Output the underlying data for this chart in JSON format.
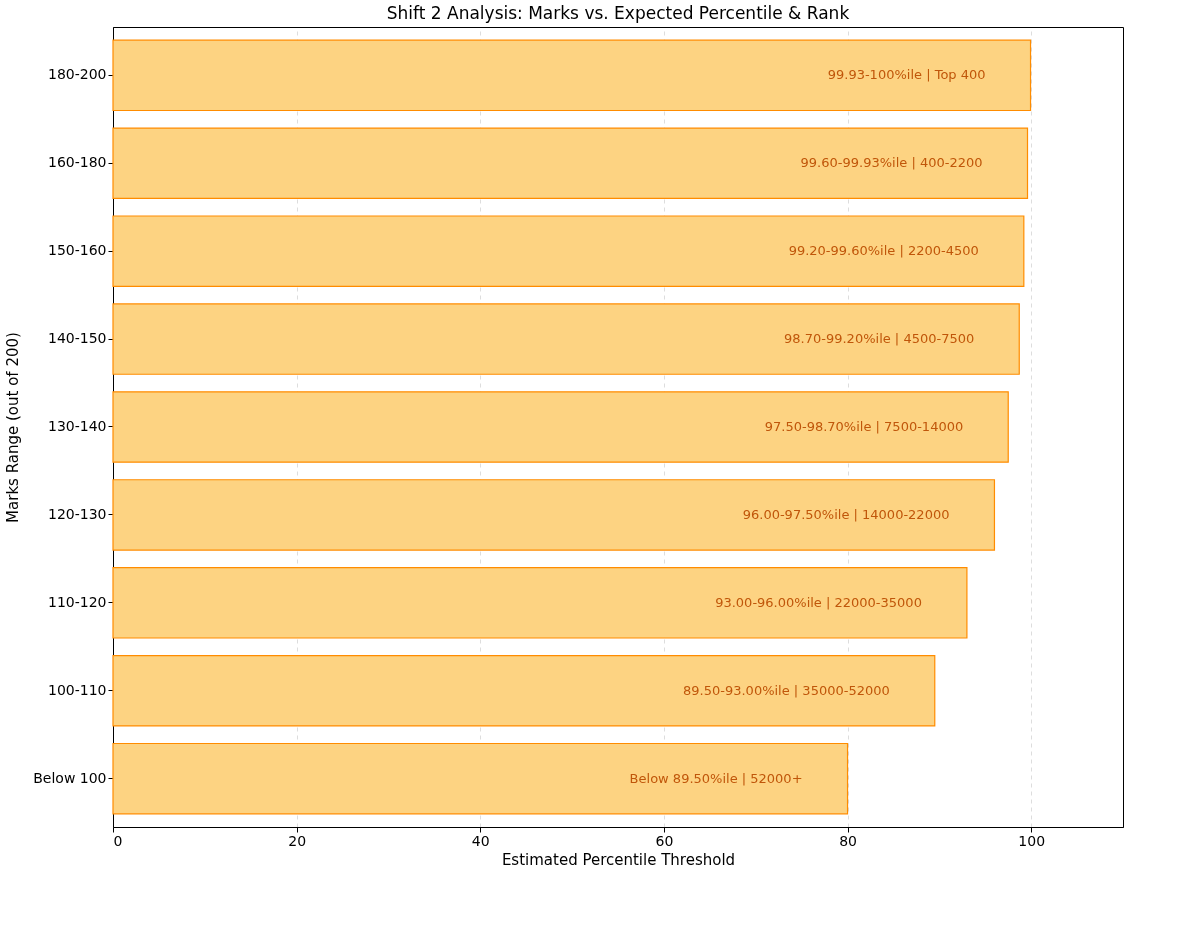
{
  "chart_data": {
    "type": "bar",
    "orientation": "horizontal",
    "title": "Shift 2 Analysis: Marks vs. Expected Percentile & Rank",
    "xlabel": "Estimated Percentile Threshold",
    "ylabel": "Marks Range (out of 200)",
    "categories": [
      "180-200",
      "160-180",
      "150-160",
      "140-150",
      "130-140",
      "120-130",
      "110-120",
      "100-110",
      "Below 100"
    ],
    "values": [
      99.93,
      99.6,
      99.2,
      98.7,
      97.5,
      96.0,
      93.0,
      89.5,
      80.0
    ],
    "annotations": [
      {
        "text": "99.93-100%ile | Top 400",
        "y": "180-200"
      },
      {
        "text": "99.60-99.93%ile | 400-2200",
        "y": "160-180"
      },
      {
        "text": "99.20-99.60%ile | 2200-4500",
        "y": "150-160"
      },
      {
        "text": "98.70-99.20%ile | 4500-7500",
        "y": "140-150"
      },
      {
        "text": "97.50-98.70%ile | 7500-14000",
        "y": "130-140"
      },
      {
        "text": "96.00-97.50%ile | 14000-22000",
        "y": "120-130"
      },
      {
        "text": "93.00-96.00%ile | 22000-35000",
        "y": "110-120"
      },
      {
        "text": "89.50-93.00%ile | 35000-52000",
        "y": "100-110"
      },
      {
        "text": "Below 89.50%ile | 52000+",
        "y": "Below 100"
      }
    ],
    "color": "#fdd382",
    "xlim": [
      0,
      110
    ],
    "xticks": [
      0,
      20,
      40,
      60,
      80,
      100
    ],
    "grid": "x"
  }
}
